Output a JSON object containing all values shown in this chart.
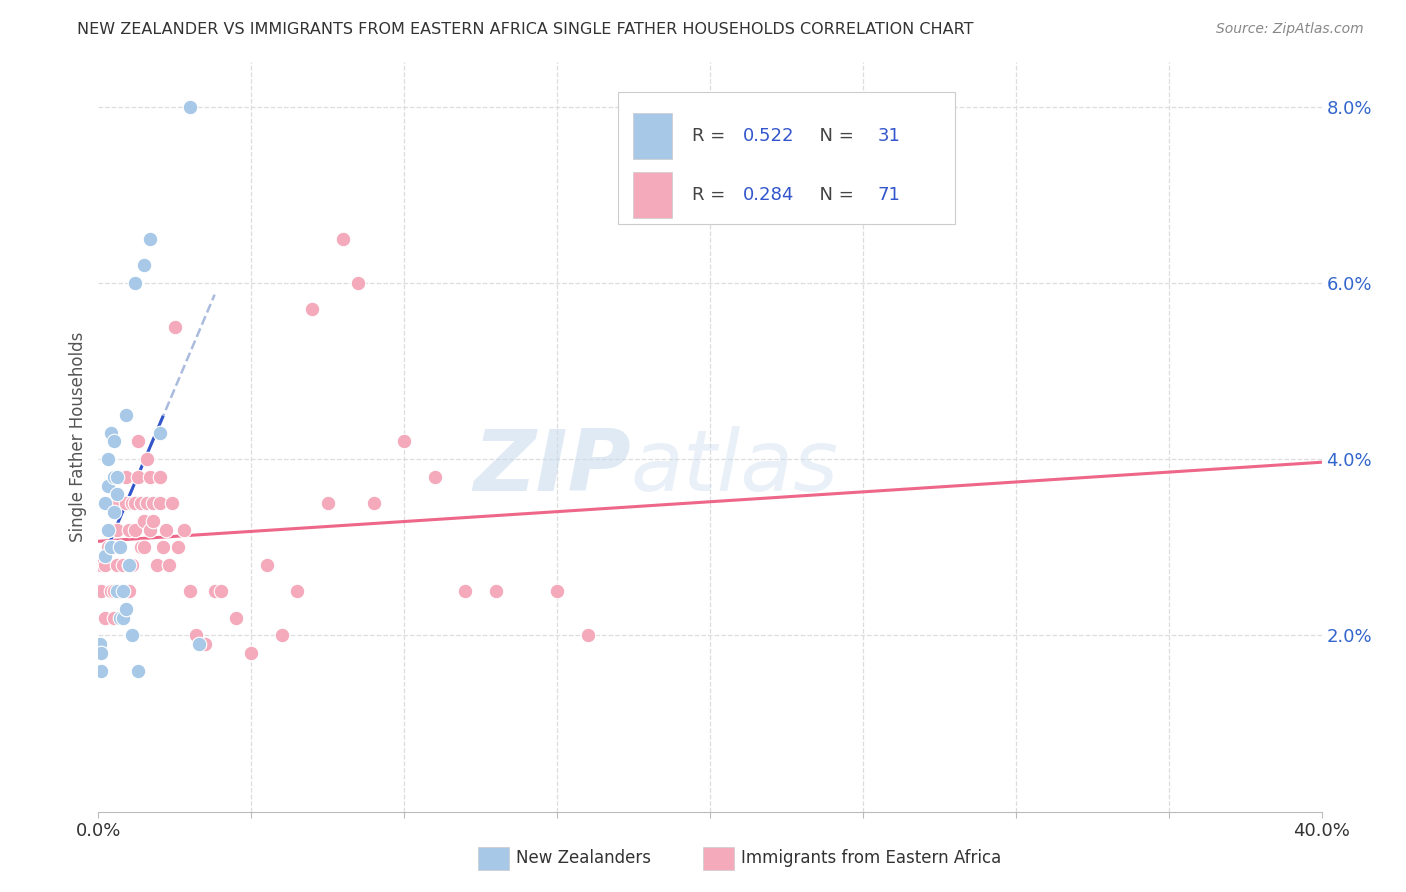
{
  "title": "NEW ZEALANDER VS IMMIGRANTS FROM EASTERN AFRICA SINGLE FATHER HOUSEHOLDS CORRELATION CHART",
  "source": "Source: ZipAtlas.com",
  "ylabel": "Single Father Households",
  "legend1_label": "New Zealanders",
  "legend2_label": "Immigrants from Eastern Africa",
  "legend1_r": "0.522",
  "legend1_n": "31",
  "legend2_r": "0.284",
  "legend2_n": "71",
  "nz_color": "#A8C8E8",
  "imm_color": "#F4AABB",
  "nz_line_color": "#3355CC",
  "nz_dash_color": "#AABBDD",
  "imm_line_color": "#EE6688",
  "background_color": "#FFFFFF",
  "xlim": [
    0.0,
    0.4
  ],
  "ylim": [
    0.0,
    0.085
  ],
  "nz_x": [
    0.0005,
    0.001,
    0.001,
    0.002,
    0.002,
    0.003,
    0.003,
    0.003,
    0.004,
    0.004,
    0.005,
    0.005,
    0.005,
    0.006,
    0.006,
    0.006,
    0.007,
    0.007,
    0.008,
    0.008,
    0.009,
    0.009,
    0.01,
    0.011,
    0.012,
    0.013,
    0.015,
    0.017,
    0.02,
    0.03,
    0.033
  ],
  "nz_y": [
    0.019,
    0.016,
    0.018,
    0.035,
    0.029,
    0.037,
    0.04,
    0.032,
    0.043,
    0.03,
    0.038,
    0.034,
    0.042,
    0.036,
    0.038,
    0.025,
    0.03,
    0.022,
    0.022,
    0.025,
    0.023,
    0.045,
    0.028,
    0.02,
    0.06,
    0.016,
    0.062,
    0.065,
    0.043,
    0.08,
    0.019
  ],
  "imm_x": [
    0.001,
    0.001,
    0.002,
    0.002,
    0.003,
    0.003,
    0.004,
    0.004,
    0.005,
    0.005,
    0.005,
    0.006,
    0.006,
    0.006,
    0.007,
    0.007,
    0.008,
    0.008,
    0.008,
    0.009,
    0.009,
    0.01,
    0.01,
    0.01,
    0.011,
    0.011,
    0.012,
    0.012,
    0.013,
    0.013,
    0.014,
    0.014,
    0.015,
    0.015,
    0.016,
    0.016,
    0.017,
    0.017,
    0.018,
    0.018,
    0.019,
    0.02,
    0.02,
    0.021,
    0.022,
    0.023,
    0.024,
    0.025,
    0.026,
    0.028,
    0.03,
    0.032,
    0.035,
    0.038,
    0.04,
    0.045,
    0.05,
    0.055,
    0.06,
    0.065,
    0.07,
    0.075,
    0.08,
    0.085,
    0.09,
    0.1,
    0.11,
    0.12,
    0.13,
    0.15,
    0.16
  ],
  "imm_y": [
    0.025,
    0.028,
    0.022,
    0.028,
    0.03,
    0.032,
    0.025,
    0.03,
    0.022,
    0.025,
    0.03,
    0.028,
    0.032,
    0.035,
    0.025,
    0.03,
    0.022,
    0.025,
    0.028,
    0.035,
    0.038,
    0.028,
    0.032,
    0.025,
    0.028,
    0.035,
    0.032,
    0.035,
    0.038,
    0.042,
    0.03,
    0.035,
    0.03,
    0.033,
    0.035,
    0.04,
    0.032,
    0.038,
    0.033,
    0.035,
    0.028,
    0.035,
    0.038,
    0.03,
    0.032,
    0.028,
    0.035,
    0.055,
    0.03,
    0.032,
    0.025,
    0.02,
    0.019,
    0.025,
    0.025,
    0.022,
    0.018,
    0.028,
    0.02,
    0.025,
    0.057,
    0.035,
    0.065,
    0.06,
    0.035,
    0.042,
    0.038,
    0.025,
    0.025,
    0.025,
    0.02
  ]
}
